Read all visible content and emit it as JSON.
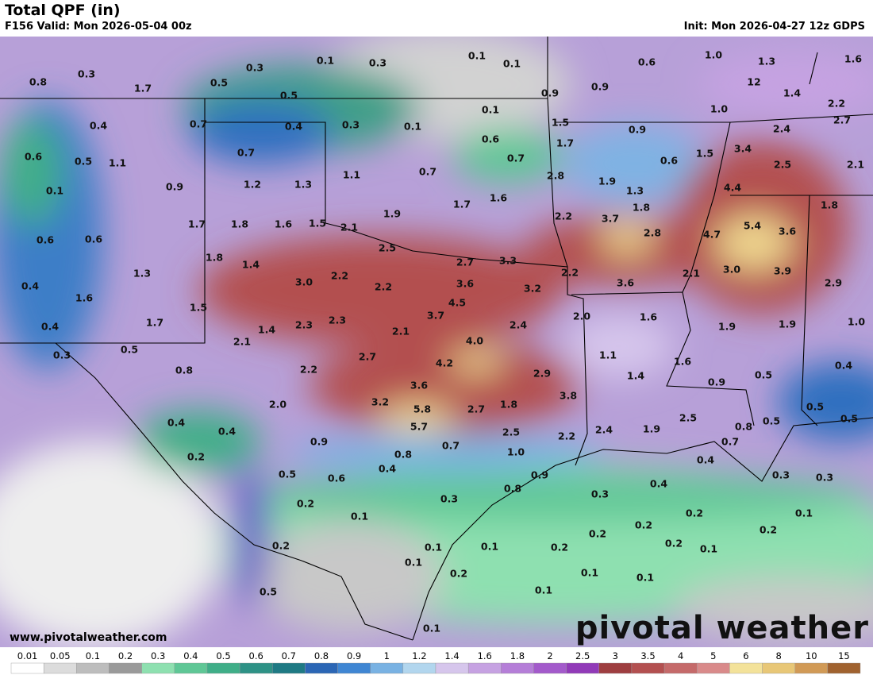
{
  "header": {
    "title": "Total QPF (in)",
    "valid": "F156 Valid: Mon 2026-05-04 00z",
    "init": "Init: Mon 2026-04-27 12z GDPS"
  },
  "map": {
    "labels": [
      "0.8",
      "0.3",
      "1.7",
      "0.5",
      "0.3",
      "0.5",
      "0.1",
      "0.3",
      "0.1",
      "0.1",
      "0.9",
      "0.9",
      "0.6",
      "1.0",
      "1.3",
      "12",
      "1.4",
      "1.6",
      "2.2",
      "2.7",
      "0.4",
      "0.7",
      "0.4",
      "0.3",
      "0.1",
      "0.1",
      "0.6",
      "0.7",
      "1.5",
      "0.9",
      "1.0",
      "2.4",
      "0.6",
      "0.5",
      "1.1",
      "0.7",
      "1.7",
      "1.5",
      "0.6",
      "3.4",
      "2.5",
      "2.1",
      "0.1",
      "0.9",
      "1.2",
      "1.3",
      "1.1",
      "0.7",
      "2.8",
      "1.9",
      "1.3",
      "4.4",
      "1.8",
      "1.7",
      "1.8",
      "1.6",
      "1.5",
      "1.9",
      "1.7",
      "1.6",
      "2.2",
      "3.7",
      "1.8",
      "2.8",
      "5.4",
      "3.6",
      "4.7",
      "0.6",
      "0.6",
      "2.1",
      "2.5",
      "1.8",
      "1.4",
      "2.7",
      "3.3",
      "2.2",
      "3.6",
      "2.1",
      "3.0",
      "3.9",
      "2.9",
      "0.4",
      "1.3",
      "1.6",
      "3.0",
      "2.2",
      "2.2",
      "3.6",
      "3.2",
      "4.5",
      "1.5",
      "1.7",
      "1.4",
      "2.3",
      "2.3",
      "2.1",
      "3.7",
      "2.4",
      "2.0",
      "1.6",
      "1.9",
      "1.9",
      "1.0",
      "0.4",
      "0.5",
      "0.3",
      "2.1",
      "4.0",
      "1.1",
      "1.6",
      "0.8",
      "2.2",
      "2.7",
      "4.2",
      "2.9",
      "1.4",
      "0.9",
      "0.5",
      "0.4",
      "3.6",
      "3.8",
      "2.0",
      "3.2",
      "5.8",
      "2.7",
      "1.8",
      "2.5",
      "0.5",
      "0.5",
      "0.5",
      "0.4",
      "0.4",
      "5.7",
      "2.5",
      "2.2",
      "2.4",
      "1.9",
      "0.8",
      "0.7",
      "0.9",
      "0.7",
      "0.8",
      "1.0",
      "0.2",
      "0.4",
      "0.5",
      "0.6",
      "0.9",
      "0.4",
      "0.3",
      "0.3",
      "0.8",
      "0.4",
      "0.3",
      "0.3",
      "0.2",
      "0.1",
      "0.2",
      "0.2",
      "0.1",
      "0.2",
      "0.2",
      "0.2",
      "0.2",
      "0.1",
      "0.1",
      "0.2",
      "0.1",
      "0.1",
      "0.2",
      "0.1",
      "0.1",
      "0.5",
      "0.1",
      "0.1"
    ]
  },
  "footer": {
    "website": "www.pivotalweather.com",
    "logo": "pivotal weather"
  },
  "colorbar": {
    "labels": [
      "0.01",
      "0.05",
      "0.1",
      "0.2",
      "0.3",
      "0.4",
      "0.5",
      "0.6",
      "0.7",
      "0.8",
      "0.9",
      "1",
      "1.2",
      "1.4",
      "1.6",
      "1.8",
      "2",
      "2.5",
      "3",
      "3.5",
      "4",
      "5",
      "6",
      "8",
      "10",
      "15"
    ],
    "colors": [
      "#ffffff",
      "#dcdcdc",
      "#bdbdbd",
      "#9a9a9a",
      "#8ee0b0",
      "#5fc796",
      "#3fae88",
      "#2e9286",
      "#1f7a84",
      "#2b66b5",
      "#3f86d3",
      "#79b2e3",
      "#b2d6ee",
      "#d6c6ec",
      "#c6a2e2",
      "#b57ed8",
      "#a35acb",
      "#913ab8",
      "#9e3e40",
      "#b35050",
      "#c56a6a",
      "#d98a8a",
      "#f3e29a",
      "#e8c777",
      "#d19a56",
      "#a0622f"
    ]
  }
}
